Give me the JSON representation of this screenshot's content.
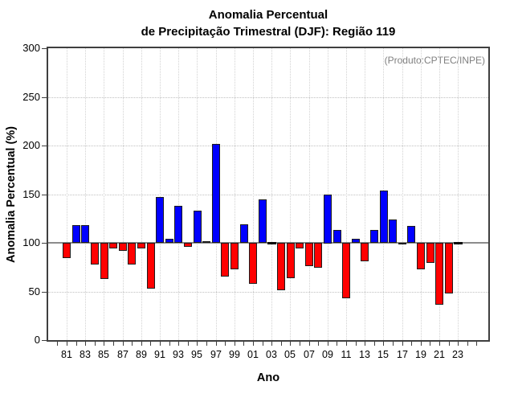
{
  "title": {
    "line1": "Anomalia Percentual",
    "line2": "de Precipitação Trimestral (DJF): Região 119"
  },
  "annotation": "(Produto:CPTEC/INPE)",
  "chart_data": {
    "type": "bar",
    "title": "Anomalia Percentual de Precipitação Trimestral (DJF): Região 119",
    "xlabel": "Ano",
    "ylabel": "Anomalia Percentual (%)",
    "ylim": [
      0,
      300
    ],
    "yticks": [
      0,
      50,
      100,
      150,
      200,
      250,
      300
    ],
    "baseline": 100,
    "grid": true,
    "legend": "none",
    "x_tick_labels": [
      "81",
      "83",
      "85",
      "87",
      "89",
      "91",
      "93",
      "95",
      "97",
      "99",
      "01",
      "03",
      "05",
      "07",
      "09",
      "11",
      "13",
      "15",
      "17",
      "19",
      "21",
      "23"
    ],
    "years": [
      1981,
      1982,
      1983,
      1984,
      1985,
      1986,
      1987,
      1988,
      1989,
      1990,
      1991,
      1992,
      1993,
      1994,
      1995,
      1996,
      1997,
      1998,
      1999,
      2000,
      2001,
      2002,
      2003,
      2004,
      2005,
      2006,
      2007,
      2008,
      2009,
      2010,
      2011,
      2012,
      2013,
      2014,
      2015,
      2016,
      2017,
      2018,
      2019,
      2020,
      2021,
      2022,
      2023
    ],
    "values": [
      84,
      118,
      118,
      78,
      63,
      94,
      92,
      78,
      94,
      53,
      147,
      104,
      138,
      96,
      133,
      102,
      202,
      65,
      73,
      119,
      58,
      145,
      100,
      51,
      64,
      94,
      76,
      74,
      150,
      113,
      43,
      104,
      81,
      113,
      154,
      124,
      98,
      117,
      73,
      79,
      36,
      48,
      100
    ],
    "colors": {
      "above_baseline": "#0000FF",
      "below_baseline": "#FF0000",
      "at_baseline": "#0a0a0a",
      "bar_outline": "#1c1c1c",
      "frame": "#3f3f3f",
      "baseline_line": "#8c8c8c",
      "annotation_text": "#808080"
    }
  }
}
